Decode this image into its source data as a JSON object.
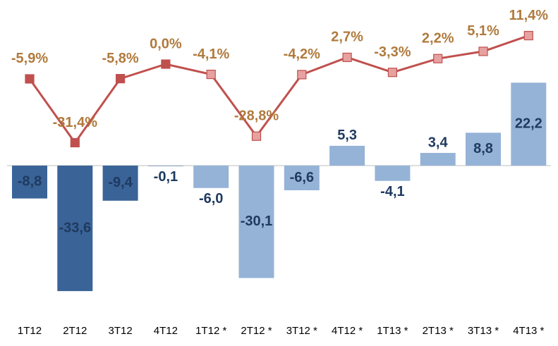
{
  "chart_data": {
    "type": "combo",
    "categories": [
      "1T12",
      "2T12",
      "3T12",
      "4T12",
      "1T12 *",
      "2T12 *",
      "3T12 *",
      "4T12 *",
      "1T13 *",
      "2T13 *",
      "3T13 *",
      "4T13 *"
    ],
    "ylim": [
      -40,
      30
    ],
    "y2lim": [
      -40,
      20
    ],
    "series": [
      {
        "type": "bar",
        "values": [
          -8.8,
          -33.6,
          -9.4,
          -0.1,
          -6.0,
          -30.1,
          -6.6,
          5.3,
          -4.1,
          3.4,
          8.8,
          22.2
        ],
        "value_labels": [
          "-8,8",
          "-33,6",
          "-9,4",
          "-0,1",
          "-6,0",
          "-30,1",
          "-6,6",
          "5,3",
          "-4,1",
          "3,4",
          "8,8",
          "22,2"
        ],
        "colors": [
          "#3a6397",
          "#3a6397",
          "#3a6397",
          "#3a6397",
          "#95b3d7",
          "#95b3d7",
          "#95b3d7",
          "#95b3d7",
          "#95b3d7",
          "#95b3d7",
          "#95b3d7",
          "#95b3d7"
        ],
        "label_color": "#1f3a60"
      },
      {
        "type": "line",
        "axis": "y2",
        "values": [
          -5.9,
          -31.4,
          -5.8,
          0.0,
          -4.1,
          -28.8,
          -4.2,
          2.7,
          -3.3,
          2.2,
          5.1,
          11.4
        ],
        "value_labels": [
          "-5,9%",
          "-31,4%",
          "-5,8%",
          "0,0%",
          "-4,1%",
          "-28,8%",
          "-4,2%",
          "2,7%",
          "-3,3%",
          "2,2%",
          "5,1%",
          "11,4%"
        ],
        "color": "#c0504d",
        "marker_colors": [
          "#c0504d",
          "#c0504d",
          "#c0504d",
          "#c0504d",
          "#e6a1a0",
          "#e6a1a0",
          "#e6a1a0",
          "#e6a1a0",
          "#e6a1a0",
          "#e6a1a0",
          "#e6a1a0",
          "#e6a1a0"
        ],
        "label_color": "#b07a3d"
      }
    ]
  }
}
